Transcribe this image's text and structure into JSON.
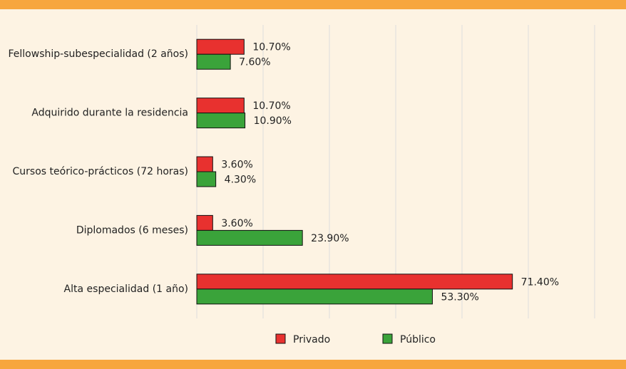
{
  "chart_data": {
    "type": "bar",
    "orientation": "horizontal",
    "categories": [
      "Fellowship-subespecialidad (2 años)",
      "Adquirido durante la residencia",
      "Cursos teórico-prácticos (72 horas)",
      "Diplomados (6 meses)",
      "Alta especialidad (1 año)"
    ],
    "series": [
      {
        "name": "Privado",
        "color": "#e8312f",
        "values": [
          10.7,
          10.7,
          3.6,
          3.6,
          71.4
        ],
        "value_labels": [
          "10.70%",
          "10.70%",
          "3.60%",
          "3.60%",
          "71.40%"
        ]
      },
      {
        "name": "Público",
        "color": "#3aa33a",
        "values": [
          7.6,
          10.9,
          4.3,
          23.9,
          53.3
        ],
        "value_labels": [
          "7.60%",
          "10.90%",
          "4.30%",
          "23.90%",
          "53.30%"
        ]
      }
    ],
    "xlim": [
      0,
      90
    ],
    "xticks": [
      0,
      15,
      30,
      45,
      60,
      75,
      90
    ],
    "grid": true,
    "legend": "bottom"
  }
}
